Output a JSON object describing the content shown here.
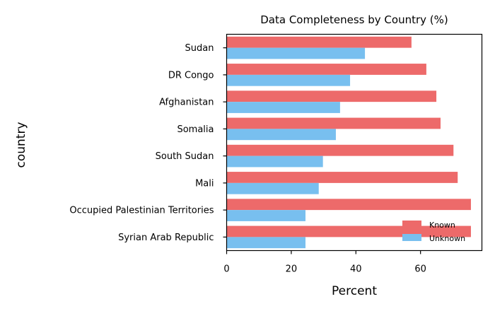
{
  "chart_data": {
    "type": "bar",
    "orientation": "horizontal",
    "title": "Data Completeness by Country (%)",
    "xlabel": "Percent",
    "ylabel": "country",
    "xlim": [
      0,
      79
    ],
    "xticks": [
      0,
      20,
      40,
      60
    ],
    "grid": false,
    "legend_position": "lower-right",
    "categories": [
      "Sudan",
      "DR Congo",
      "Afghanistan",
      "Somalia",
      "South Sudan",
      "Mali",
      "Occupied Palestinian Territories",
      "Syrian Arab Republic"
    ],
    "series": [
      {
        "name": "Known",
        "color": "#ed6a6a",
        "values": [
          57.2,
          61.8,
          64.9,
          66.2,
          70.2,
          71.5,
          75.6,
          75.6
        ]
      },
      {
        "name": "Unknown",
        "color": "#78bfef",
        "values": [
          42.8,
          38.2,
          35.1,
          33.8,
          29.8,
          28.5,
          24.4,
          24.4
        ]
      }
    ]
  }
}
